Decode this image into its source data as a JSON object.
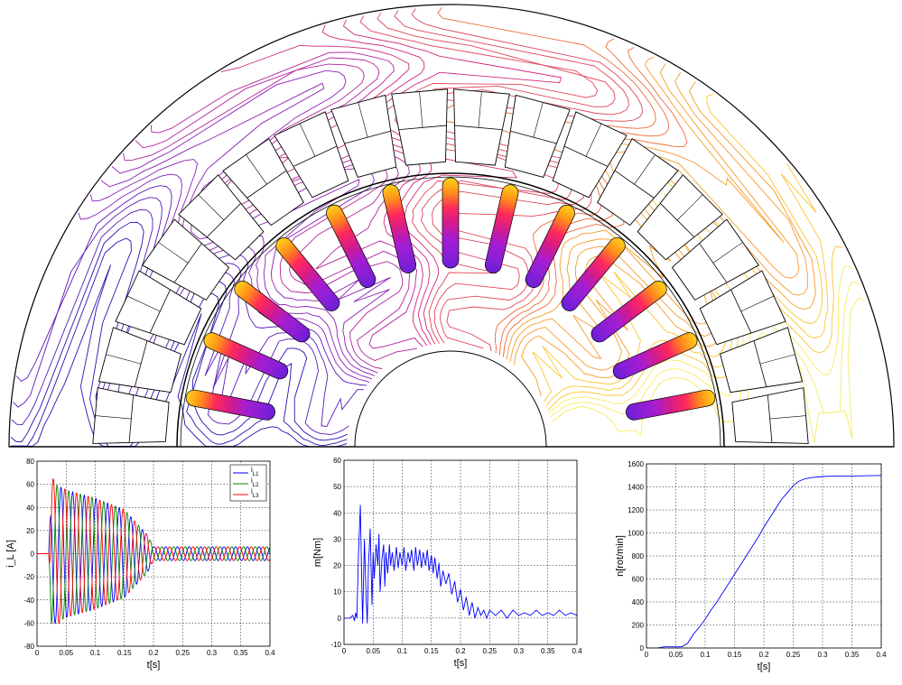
{
  "colors": {
    "field_lines": [
      "#2a0fb0",
      "#5a18b8",
      "#8a1fb8",
      "#b3229c",
      "#d0287a",
      "#e0455a",
      "#ee6a3a",
      "#f79a2a",
      "#fcc530",
      "#f5ec60"
    ],
    "bar_gradient": [
      "#ffd21a",
      "#ff8c1a",
      "#ff2a5a",
      "#d41b8c",
      "#a61dd0",
      "#8c1fd6",
      "#6a1fd6"
    ],
    "series": [
      "#0000ff",
      "#008000",
      "#ff0000"
    ]
  },
  "chart_data": [
    {
      "type": "line",
      "title": "",
      "xlabel": "t[s]",
      "ylabel": "i_L [A]",
      "xlim": [
        0,
        0.4
      ],
      "ylim": [
        -80,
        80
      ],
      "xticks": [
        "0",
        "0.05",
        "0.1",
        "0.15",
        "0.2",
        "0.25",
        "0.3",
        "0.35",
        "0.4"
      ],
      "yticks": [
        "80",
        "60",
        "40",
        "20",
        "0",
        "-20",
        "-40",
        "-60",
        "-80"
      ],
      "grid": true,
      "legend": "top-right",
      "series": [
        {
          "name": "i L1",
          "legend_label": "i",
          "subscript": "L1",
          "envelope_t": [
            0,
            0.02,
            0.025,
            0.05,
            0.1,
            0.15,
            0.19,
            0.2,
            0.4
          ],
          "envelope_amp": [
            0,
            0,
            62,
            55,
            48,
            38,
            16,
            6,
            6
          ],
          "frequency_hz": 50,
          "phase_deg": 0
        },
        {
          "name": "i L2",
          "legend_label": "i",
          "subscript": "L2",
          "envelope_t": [
            0,
            0.02,
            0.025,
            0.05,
            0.1,
            0.15,
            0.19,
            0.2,
            0.4
          ],
          "envelope_amp": [
            0,
            0,
            62,
            55,
            48,
            38,
            16,
            6,
            6
          ],
          "frequency_hz": 50,
          "phase_deg": 120
        },
        {
          "name": "i L3",
          "legend_label": "i",
          "subscript": "L3",
          "envelope_t": [
            0,
            0.02,
            0.025,
            0.05,
            0.1,
            0.15,
            0.19,
            0.2,
            0.4
          ],
          "envelope_amp": [
            0,
            0,
            66,
            55,
            48,
            38,
            16,
            6,
            6
          ],
          "frequency_hz": 50,
          "phase_deg": 240
        }
      ]
    },
    {
      "type": "line",
      "title": "",
      "xlabel": "t[s]",
      "ylabel": "m[Nm]",
      "xlim": [
        0,
        0.4
      ],
      "ylim": [
        -10,
        60
      ],
      "xticks": [
        "0",
        "0.05",
        "0.1",
        "0.15",
        "0.2",
        "0.25",
        "0.3",
        "0.35",
        "0.4"
      ],
      "yticks": [
        "60",
        "50",
        "40",
        "30",
        "20",
        "10",
        "0",
        "-10"
      ],
      "grid": true,
      "series": [
        {
          "name": "m",
          "x": [
            0,
            0.01,
            0.015,
            0.018,
            0.02,
            0.022,
            0.025,
            0.028,
            0.03,
            0.032,
            0.035,
            0.038,
            0.04,
            0.042,
            0.045,
            0.048,
            0.05,
            0.052,
            0.055,
            0.058,
            0.06,
            0.062,
            0.065,
            0.068,
            0.07,
            0.072,
            0.075,
            0.078,
            0.08,
            0.083,
            0.086,
            0.09,
            0.093,
            0.096,
            0.1,
            0.103,
            0.106,
            0.11,
            0.113,
            0.116,
            0.12,
            0.123,
            0.126,
            0.13,
            0.133,
            0.136,
            0.14,
            0.143,
            0.146,
            0.15,
            0.153,
            0.156,
            0.16,
            0.163,
            0.166,
            0.17,
            0.175,
            0.18,
            0.185,
            0.19,
            0.195,
            0.2,
            0.205,
            0.21,
            0.215,
            0.22,
            0.225,
            0.23,
            0.235,
            0.24,
            0.245,
            0.25,
            0.26,
            0.27,
            0.28,
            0.29,
            0.3,
            0.31,
            0.32,
            0.33,
            0.34,
            0.35,
            0.36,
            0.37,
            0.38,
            0.39,
            0.4
          ],
          "y": [
            0,
            0,
            1,
            -1,
            2,
            0,
            25,
            43,
            20,
            -2,
            30,
            8,
            -2,
            20,
            34,
            5,
            25,
            15,
            28,
            20,
            32,
            10,
            22,
            28,
            12,
            25,
            17,
            28,
            20,
            25,
            18,
            27,
            19,
            25,
            20,
            27,
            18,
            25,
            21,
            26,
            18,
            27,
            20,
            26,
            19,
            25,
            20,
            26,
            18,
            24,
            17,
            23,
            15,
            21,
            12,
            18,
            13,
            17,
            9,
            14,
            6,
            11,
            3,
            8,
            1,
            6,
            0,
            4,
            1,
            3,
            0,
            3,
            1,
            3,
            0,
            3,
            1,
            2,
            1,
            3,
            1,
            2,
            1,
            3,
            1,
            2,
            1
          ]
        }
      ]
    },
    {
      "type": "line",
      "title": "",
      "xlabel": "t[s]",
      "ylabel": "n[rot/min]",
      "xlim": [
        0,
        0.4
      ],
      "ylim": [
        0,
        1600
      ],
      "xticks": [
        "0",
        "0.05",
        "0.1",
        "0.15",
        "0.2",
        "0.25",
        "0.3",
        "0.35",
        "0.4"
      ],
      "yticks": [
        "1600",
        "1400",
        "1200",
        "1000",
        "800",
        "600",
        "400",
        "200",
        "0"
      ],
      "grid": true,
      "series": [
        {
          "name": "n",
          "x": [
            0,
            0.02,
            0.03,
            0.06,
            0.07,
            0.08,
            0.09,
            0.1,
            0.11,
            0.12,
            0.13,
            0.14,
            0.15,
            0.16,
            0.17,
            0.18,
            0.19,
            0.2,
            0.21,
            0.22,
            0.23,
            0.24,
            0.25,
            0.26,
            0.27,
            0.28,
            0.3,
            0.32,
            0.35,
            0.4
          ],
          "y": [
            0,
            0,
            10,
            10,
            40,
            120,
            180,
            250,
            330,
            400,
            480,
            560,
            640,
            720,
            800,
            880,
            960,
            1050,
            1130,
            1210,
            1290,
            1350,
            1410,
            1450,
            1470,
            1480,
            1490,
            1495,
            1495,
            1500
          ]
        }
      ]
    }
  ]
}
